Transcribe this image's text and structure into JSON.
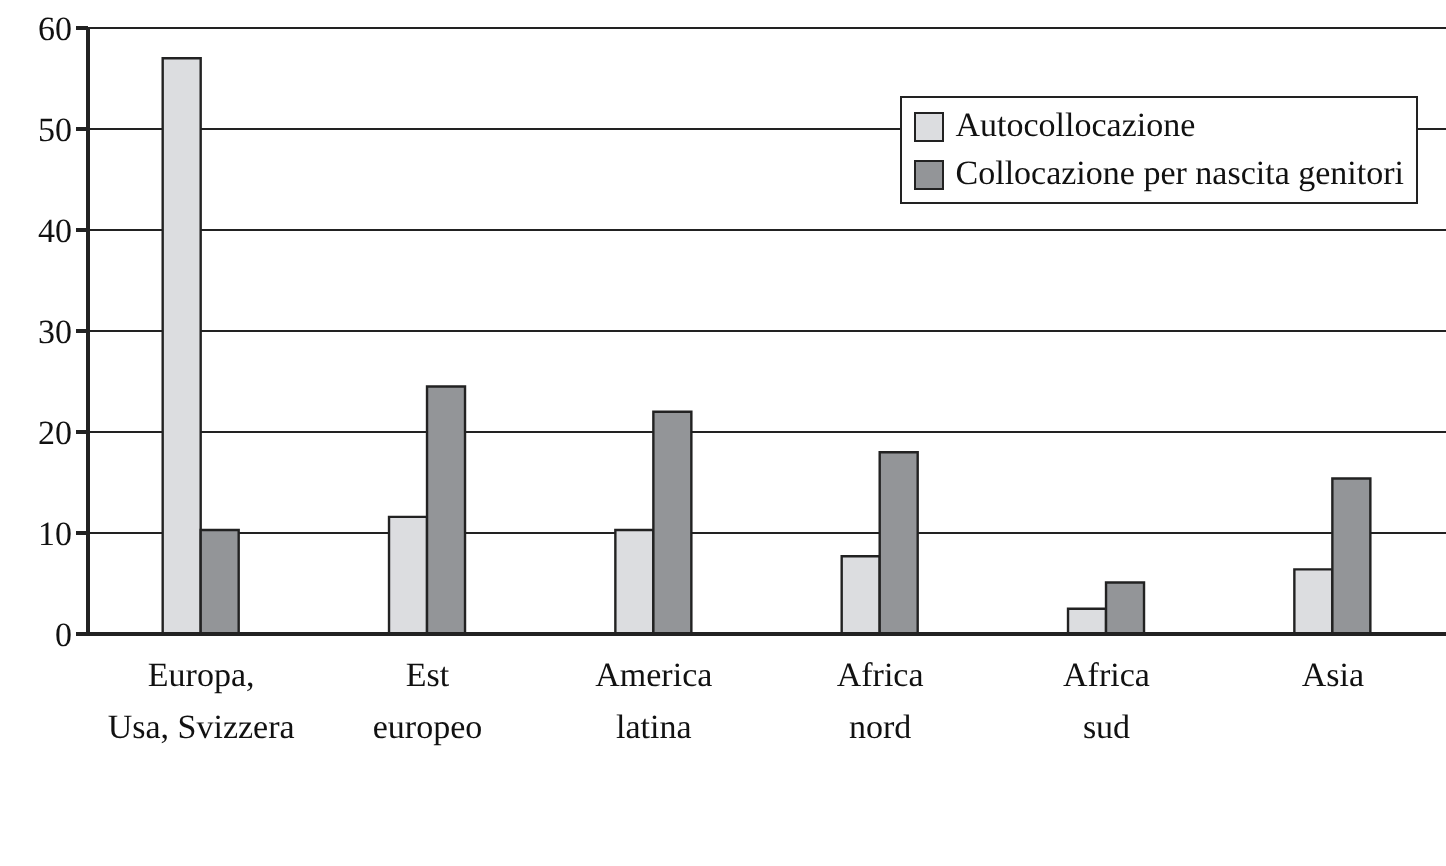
{
  "chart_data": {
    "type": "bar",
    "categories": [
      "Europa,\nUsa, Svizzera",
      "Est\neuropeo",
      "America\nlatina",
      "Africa\nnord",
      "Africa\nsud",
      "Asia"
    ],
    "series": [
      {
        "name": "Autocollocazione",
        "color": "#dcdde0",
        "values": [
          57,
          11.6,
          10.3,
          7.7,
          2.5,
          6.4
        ]
      },
      {
        "name": "Collocazione per nascita genitori",
        "color": "#939598",
        "values": [
          10.3,
          24.5,
          22,
          18,
          5.1,
          15.4
        ]
      }
    ],
    "ylim": [
      0,
      60
    ],
    "yticks": [
      0,
      10,
      20,
      30,
      40,
      50,
      60
    ],
    "grid": "y",
    "legend": "top right"
  }
}
